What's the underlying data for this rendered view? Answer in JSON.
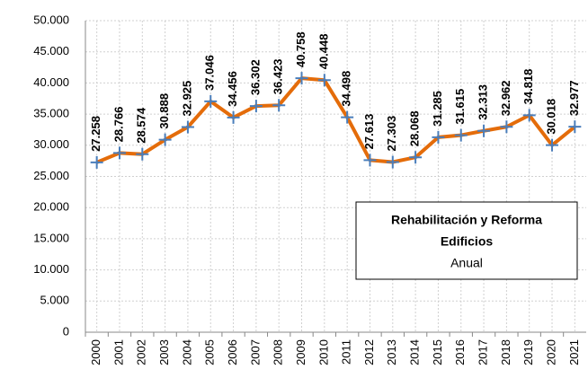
{
  "chart_data": {
    "type": "line",
    "categories": [
      "2000",
      "2001",
      "2002",
      "2003",
      "2004",
      "2005",
      "2006",
      "2007",
      "2008",
      "2009",
      "2010",
      "2011",
      "2012",
      "2013",
      "2014",
      "2015",
      "2016",
      "2017",
      "2018",
      "2019",
      "2020",
      "2021"
    ],
    "series": [
      {
        "name": "Anual",
        "color": "#e46c0a",
        "marker_color": "#4a7ebb",
        "values": [
          27258,
          28766,
          28574,
          30888,
          32925,
          37046,
          34456,
          36302,
          36423,
          40758,
          40448,
          34498,
          27613,
          27303,
          28068,
          31285,
          31615,
          32313,
          32962,
          34818,
          30018,
          32977
        ],
        "value_labels": [
          "27.258",
          "28.766",
          "28.574",
          "30.888",
          "32.925",
          "37.046",
          "34.456",
          "36.302",
          "36.423",
          "40.758",
          "40.448",
          "34.498",
          "27.613",
          "27.303",
          "28.068",
          "31.285",
          "31.615",
          "32.313",
          "32.962",
          "34.818",
          "30.018",
          "32.977"
        ]
      }
    ],
    "annotation": {
      "title_lines": [
        "Rehabilitación y Reforma",
        "Edificios"
      ],
      "subtitle": "Anual"
    },
    "ylim": [
      0,
      50000
    ],
    "yticks": [
      0,
      {
        "value": 5000,
        "label": "5.000"
      },
      {
        "value": 10000,
        "label": "10.000"
      },
      {
        "value": 15000,
        "label": "15.000"
      },
      {
        "value": 20000,
        "label": "20.000"
      },
      {
        "value": 25000,
        "label": "25.000"
      },
      {
        "value": 30000,
        "label": "30.000"
      },
      {
        "value": 35000,
        "label": "35.000"
      },
      {
        "value": 40000,
        "label": "40.000"
      },
      {
        "value": 45000,
        "label": "45.000"
      },
      {
        "value": 50000,
        "label": "50.000"
      }
    ],
    "grid": true,
    "value_label_color": "#c0600f"
  }
}
